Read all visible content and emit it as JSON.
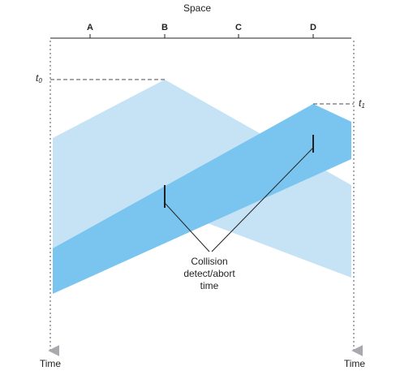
{
  "header": {
    "space_label": "Space"
  },
  "stations": [
    {
      "label": "A"
    },
    {
      "label": "B"
    },
    {
      "label": "C"
    },
    {
      "label": "D"
    }
  ],
  "times": {
    "t0": {
      "letter": "t",
      "sub": "0"
    },
    "t1": {
      "letter": "t",
      "sub": "1"
    }
  },
  "time_axis": {
    "left_label": "Time",
    "right_label": "Time"
  },
  "annotation": {
    "line1": "Collision",
    "line2": "detect/abort",
    "line3": "time"
  },
  "colors": {
    "light_wave": "#c6e3f6",
    "dark_wave": "#79c5ef",
    "stripe": "#e6f4fc",
    "axis": "#231f20",
    "dotted_axis": "#a7a9ac",
    "dashed": "#4d4d4f"
  }
}
